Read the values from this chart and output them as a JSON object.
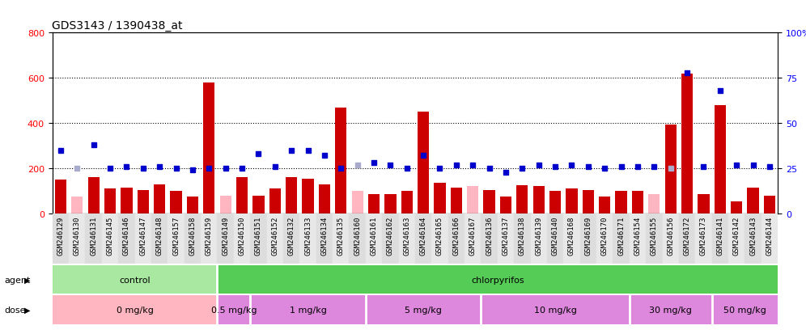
{
  "title": "GDS3143 / 1390438_at",
  "samples": [
    "GSM246129",
    "GSM246130",
    "GSM246131",
    "GSM246145",
    "GSM246146",
    "GSM246147",
    "GSM246148",
    "GSM246157",
    "GSM246158",
    "GSM246159",
    "GSM246149",
    "GSM246150",
    "GSM246151",
    "GSM246152",
    "GSM246132",
    "GSM246133",
    "GSM246134",
    "GSM246135",
    "GSM246160",
    "GSM246161",
    "GSM246162",
    "GSM246163",
    "GSM246164",
    "GSM246165",
    "GSM246166",
    "GSM246167",
    "GSM246136",
    "GSM246137",
    "GSM246138",
    "GSM246139",
    "GSM246140",
    "GSM246168",
    "GSM246169",
    "GSM246170",
    "GSM246171",
    "GSM246154",
    "GSM246155",
    "GSM246156",
    "GSM246172",
    "GSM246173",
    "GSM246141",
    "GSM246142",
    "GSM246143",
    "GSM246144"
  ],
  "count_values": [
    150,
    75,
    160,
    110,
    115,
    105,
    130,
    100,
    75,
    580,
    80,
    160,
    80,
    110,
    160,
    155,
    130,
    470,
    100,
    85,
    85,
    100,
    450,
    135,
    115,
    120,
    105,
    75,
    125,
    120,
    100,
    110,
    105,
    75,
    100,
    100,
    85,
    395,
    620,
    85,
    480,
    55,
    115,
    80
  ],
  "rank_values": [
    35,
    25,
    38,
    25,
    26,
    25,
    26,
    25,
    24,
    25,
    25,
    25,
    33,
    26,
    35,
    35,
    32,
    25,
    27,
    28,
    27,
    25,
    32,
    25,
    27,
    27,
    25,
    23,
    25,
    27,
    26,
    27,
    26,
    25,
    26,
    26,
    26,
    25,
    78,
    26,
    68,
    27,
    27,
    26
  ],
  "absent_count": [
    false,
    true,
    false,
    false,
    false,
    false,
    false,
    false,
    false,
    false,
    true,
    false,
    false,
    false,
    false,
    false,
    false,
    false,
    true,
    false,
    false,
    false,
    false,
    false,
    false,
    true,
    false,
    false,
    false,
    false,
    false,
    false,
    false,
    false,
    false,
    false,
    true,
    false,
    false,
    false,
    false,
    false,
    false,
    false
  ],
  "absent_rank": [
    false,
    true,
    false,
    false,
    false,
    false,
    false,
    false,
    false,
    false,
    false,
    false,
    false,
    false,
    false,
    false,
    false,
    false,
    true,
    false,
    false,
    false,
    false,
    false,
    false,
    false,
    false,
    false,
    false,
    false,
    false,
    false,
    false,
    false,
    false,
    false,
    false,
    true,
    false,
    false,
    false,
    false,
    false,
    false
  ],
  "agent_groups": [
    {
      "label": "control",
      "start": 0,
      "end": 10
    },
    {
      "label": "chlorpyrifos",
      "start": 10,
      "end": 44
    }
  ],
  "dose_groups": [
    {
      "label": "0 mg/kg",
      "start": 0,
      "end": 10
    },
    {
      "label": "0.5 mg/kg",
      "start": 10,
      "end": 12
    },
    {
      "label": "1 mg/kg",
      "start": 12,
      "end": 19
    },
    {
      "label": "5 mg/kg",
      "start": 19,
      "end": 26
    },
    {
      "label": "10 mg/kg",
      "start": 26,
      "end": 35
    },
    {
      "label": "30 mg/kg",
      "start": 35,
      "end": 40
    },
    {
      "label": "50 mg/kg",
      "start": 40,
      "end": 44
    }
  ],
  "ylim_left": [
    0,
    800
  ],
  "ylim_right": [
    0,
    100
  ],
  "yticks_left": [
    0,
    200,
    400,
    600,
    800
  ],
  "yticks_right_vals": [
    0,
    25,
    50,
    75,
    100
  ],
  "yticks_right_labels": [
    "0",
    "25",
    "50",
    "75",
    "100%"
  ],
  "bar_color": "#CC0000",
  "absent_bar_color": "#FFB6C1",
  "rank_color": "#0000CC",
  "absent_rank_color": "#AAAACC",
  "agent_color_control": "#98E898",
  "agent_color_chlor": "#66DD66",
  "dose_color_0": "#FFB6C1",
  "dose_color_other": "#DD88DD",
  "title_fontsize": 10,
  "tick_fontsize": 6.5,
  "label_fontsize": 8
}
